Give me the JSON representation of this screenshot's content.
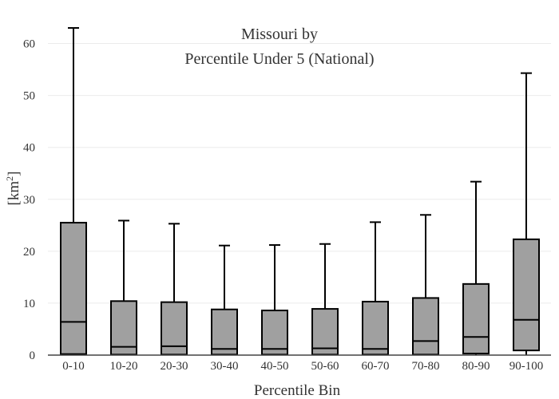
{
  "chart_data": {
    "type": "box",
    "title": [
      "Missouri  by",
      "Percentile Under 5 (National)"
    ],
    "xlabel": "Percentile Bin",
    "ylabel_base": "[km",
    "ylabel_sup": "2",
    "ylabel_end": "]",
    "ylim": [
      0,
      65
    ],
    "yticks": [
      0,
      10,
      20,
      30,
      40,
      50,
      60
    ],
    "grid": true,
    "colors": {
      "box_fill": "#a0a0a0",
      "stroke": "#000000",
      "grid": "#ebebeb"
    },
    "categories": [
      "0-10",
      "10-20",
      "20-30",
      "30-40",
      "40-50",
      "50-60",
      "60-70",
      "70-80",
      "80-90",
      "90-100"
    ],
    "boxes": [
      {
        "min": 0,
        "q1": 0.2,
        "median": 6.4,
        "q3": 25.5,
        "max": 63.0
      },
      {
        "min": 0,
        "q1": 0.1,
        "median": 1.6,
        "q3": 10.4,
        "max": 25.9
      },
      {
        "min": 0,
        "q1": 0.1,
        "median": 1.7,
        "q3": 10.2,
        "max": 25.3
      },
      {
        "min": 0,
        "q1": 0.1,
        "median": 1.2,
        "q3": 8.8,
        "max": 21.1
      },
      {
        "min": 0,
        "q1": 0.1,
        "median": 1.2,
        "q3": 8.6,
        "max": 21.2
      },
      {
        "min": 0,
        "q1": 0.1,
        "median": 1.3,
        "q3": 8.9,
        "max": 21.4
      },
      {
        "min": 0,
        "q1": 0.1,
        "median": 1.2,
        "q3": 10.3,
        "max": 25.6
      },
      {
        "min": 0,
        "q1": 0.1,
        "median": 2.7,
        "q3": 11.0,
        "max": 27.0
      },
      {
        "min": 0,
        "q1": 0.3,
        "median": 3.5,
        "q3": 13.7,
        "max": 33.4
      },
      {
        "min": 0,
        "q1": 0.9,
        "median": 6.8,
        "q3": 22.3,
        "max": 54.3
      }
    ]
  }
}
